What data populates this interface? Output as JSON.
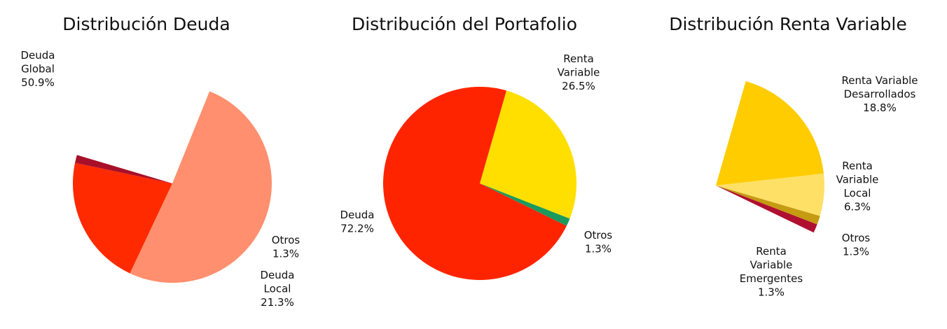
{
  "chart_data": [
    {
      "type": "pie",
      "title": "Distribución Deuda",
      "slices": [
        {
          "name": "Deuda Global",
          "label_lines": [
            "Deuda",
            "Global",
            "50.9%"
          ],
          "value": 50.9,
          "color": "#FF8F6E"
        },
        {
          "name": "Deuda Local",
          "label_lines": [
            "Deuda",
            "Local",
            "21.3%"
          ],
          "value": 21.3,
          "color": "#FF2A00"
        },
        {
          "name": "Otros",
          "label_lines": [
            "Otros",
            "1.3%"
          ],
          "value": 1.3,
          "color": "#A8102A"
        }
      ]
    },
    {
      "type": "pie",
      "title": "Distribución del Portafolio",
      "slices": [
        {
          "name": "Renta Variable",
          "label_lines": [
            "Renta",
            "Variable",
            "26.5%"
          ],
          "value": 26.5,
          "color": "#FFDF00"
        },
        {
          "name": "Otros",
          "label_lines": [
            "Otros",
            "1.3%"
          ],
          "value": 1.3,
          "color": "#1B9A5E"
        },
        {
          "name": "Deuda",
          "label_lines": [
            "Deuda",
            "72.2%"
          ],
          "value": 72.2,
          "color": "#FF2400"
        }
      ]
    },
    {
      "type": "pie",
      "title": "Distribución Renta Variable",
      "slices": [
        {
          "name": "Renta Variable Desarrollados",
          "label_lines": [
            "Renta Variable",
            "Desarrollados",
            "18.8%"
          ],
          "value": 18.8,
          "color": "#FFCC00"
        },
        {
          "name": "Renta Variable Local",
          "label_lines": [
            "Renta",
            "Variable",
            "Local",
            "6.3%"
          ],
          "value": 6.3,
          "color": "#FFE066"
        },
        {
          "name": "Otros",
          "label_lines": [
            "Otros",
            "1.3%"
          ],
          "value": 1.3,
          "color": "#C59B12"
        },
        {
          "name": "Renta Variable Emergentes",
          "label_lines": [
            "Renta",
            "Variable",
            "Emergentes",
            "1.3%"
          ],
          "value": 1.3,
          "color": "#B01030"
        }
      ]
    }
  ]
}
